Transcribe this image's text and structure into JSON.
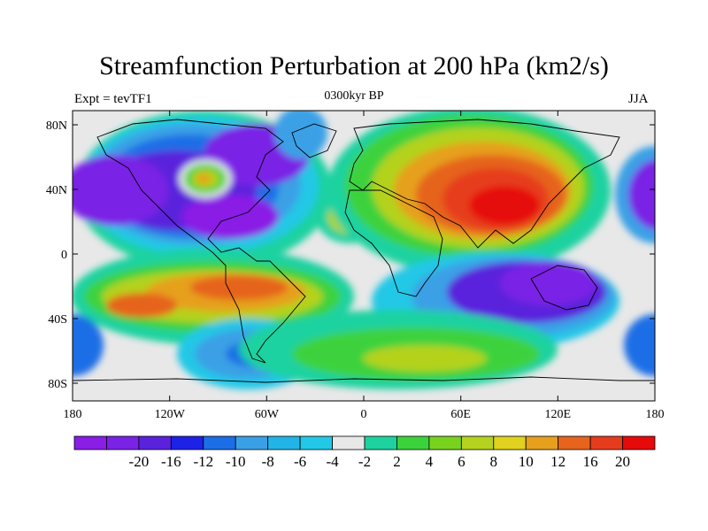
{
  "title": "Streamfunction Perturbation at 200 hPa (km2/s)",
  "left_label": "Expt = tevTF1",
  "center_label": "0300kyr BP",
  "right_label": "JJA",
  "lat_ticks": [
    "80N",
    "40N",
    "0",
    "40S",
    "80S"
  ],
  "lon_ticks": [
    "180",
    "120W",
    "60W",
    "0",
    "60E",
    "120E",
    "180"
  ],
  "colorbar": {
    "colors": [
      "#8a1de6",
      "#7a22e6",
      "#5a22dc",
      "#1e22e6",
      "#1c6ee6",
      "#3aa0e6",
      "#22b4e6",
      "#22c8e6",
      "#e8e8e8",
      "#1ed2a0",
      "#3cd23c",
      "#78d21e",
      "#b4d21e",
      "#e0d21e",
      "#e6a01e",
      "#e6641e",
      "#e63c1e",
      "#e60a0a"
    ],
    "labels": [
      "-20",
      "-16",
      "-12",
      "-10",
      "-8",
      "-6",
      "-4",
      "-2",
      "2",
      "4",
      "6",
      "8",
      "10",
      "12",
      "16",
      "20"
    ]
  }
}
